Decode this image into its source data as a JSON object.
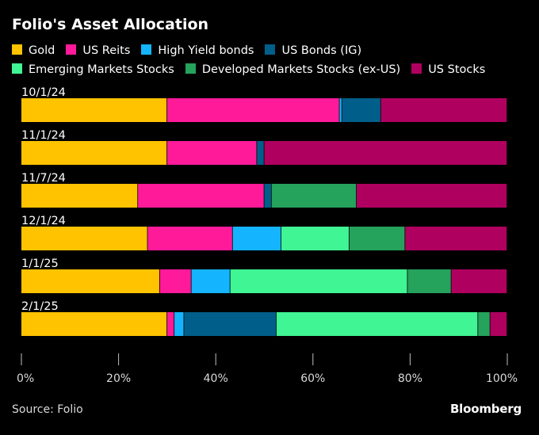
{
  "colors": {
    "Gold": "#ffc300",
    "US Reits": "#ff1a9a",
    "High Yield bonds": "#14b4ff",
    "US Bonds (IG)": "#005f8a",
    "Emerging Markets Stocks": "#40f593",
    "Developed Markets Stocks (ex-US)": "#25a25c",
    "US Stocks": "#b0005f",
    "background": "#000000",
    "text": "#ffffff"
  },
  "source": "Source: Folio",
  "brand": "Bloomberg",
  "chart_data": {
    "type": "bar",
    "orientation": "horizontal",
    "stacked": true,
    "title": "Folio's Asset Allocation",
    "categories": [
      "10/1/24",
      "11/1/24",
      "11/7/24",
      "12/1/24",
      "1/1/25",
      "2/1/25"
    ],
    "series": [
      {
        "name": "Gold",
        "values": [
          30,
          30,
          24,
          26,
          28.5,
          30
        ]
      },
      {
        "name": "US Reits",
        "values": [
          35.5,
          18.5,
          26,
          17.5,
          6.5,
          1.5
        ]
      },
      {
        "name": "High Yield bonds",
        "values": [
          0.5,
          0,
          0,
          10,
          8,
          2
        ]
      },
      {
        "name": "US Bonds (IG)",
        "values": [
          8,
          1.5,
          1.5,
          0,
          0,
          19
        ]
      },
      {
        "name": "Emerging Markets Stocks",
        "values": [
          0,
          0,
          0,
          14,
          36.5,
          41.5
        ]
      },
      {
        "name": "Developed Markets Stocks (ex-US)",
        "values": [
          0,
          0,
          17.5,
          11.5,
          9,
          2.5
        ]
      },
      {
        "name": "US Stocks",
        "values": [
          26,
          50,
          31,
          21,
          11.5,
          3.5
        ]
      }
    ],
    "x_ticks": [
      "0%",
      "20%",
      "40%",
      "60%",
      "80%",
      "100%"
    ],
    "xlim": [
      0,
      100
    ],
    "xlabel": "",
    "ylabel": "",
    "grid": false,
    "legend": "top"
  }
}
